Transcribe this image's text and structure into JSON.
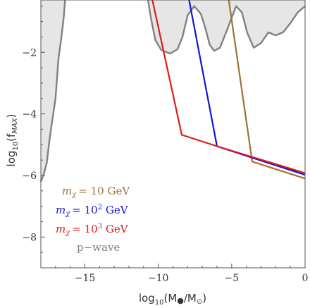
{
  "chart_data": {
    "type": "line",
    "xlabel": "log₁₀(M●/M☉)",
    "ylabel": "log₁₀(f_MAX)",
    "xlim": [
      -18,
      0
    ],
    "ylim": [
      -9,
      -0.3
    ],
    "x_ticks": [
      -15,
      -10,
      -5,
      0
    ],
    "y_ticks": [
      -2,
      -4,
      -6,
      -8
    ],
    "grid": false,
    "legend_position": "bottom-left",
    "colors": {
      "brown": "#a0703a",
      "blue": "#1515d8",
      "red": "#e01b1b",
      "gray": "#808080",
      "shade": "#e6e6e6"
    },
    "series": [
      {
        "name": "m_χ = 10 GeV",
        "color": "#a0703a",
        "points": [
          [
            -5.2,
            -0.3
          ],
          [
            -3.6,
            -5.55
          ],
          [
            0,
            -6.1
          ]
        ]
      },
      {
        "name": "m_χ = 10² GeV",
        "color": "#1515d8",
        "points": [
          [
            -7.9,
            -0.3
          ],
          [
            -6.0,
            -5.05
          ],
          [
            0,
            -5.98
          ]
        ]
      },
      {
        "name": "m_χ = 10³ GeV",
        "color": "#e01b1b",
        "points": [
          [
            -10.4,
            -0.3
          ],
          [
            -8.4,
            -4.68
          ],
          [
            -6.0,
            -5.05
          ],
          [
            0,
            -5.92
          ]
        ]
      }
    ],
    "excluded_regions": [
      {
        "name": "p−wave",
        "color": "#808080",
        "left_boundary": [
          [
            -18,
            -6.2
          ],
          [
            -17.8,
            -5.95
          ],
          [
            -17.6,
            -5.6
          ],
          [
            -17.4,
            -4.8
          ],
          [
            -17.25,
            -4.3
          ],
          [
            -17.0,
            -3.5
          ],
          [
            -16.8,
            -2.2
          ],
          [
            -16.6,
            -1.5
          ],
          [
            -16.45,
            -0.9
          ],
          [
            -16.35,
            -0.3
          ]
        ],
        "right_boundary": [
          [
            -10.7,
            -0.3
          ],
          [
            -10.5,
            -0.9
          ],
          [
            -10.2,
            -1.6
          ],
          [
            -9.8,
            -1.92
          ],
          [
            -9.2,
            -2.04
          ],
          [
            -8.7,
            -1.9
          ],
          [
            -8.35,
            -1.5
          ],
          [
            -8.0,
            -0.8
          ],
          [
            -7.55,
            -0.5
          ],
          [
            -7.1,
            -0.75
          ],
          [
            -6.8,
            -1.2
          ],
          [
            -6.5,
            -1.75
          ],
          [
            -6.2,
            -1.95
          ],
          [
            -5.8,
            -1.85
          ],
          [
            -5.3,
            -1.25
          ],
          [
            -4.7,
            -0.5
          ],
          [
            -4.3,
            -0.7
          ],
          [
            -3.95,
            -1.35
          ],
          [
            -3.5,
            -1.85
          ],
          [
            -3.0,
            -1.7
          ],
          [
            -2.5,
            -1.35
          ],
          [
            -2.0,
            -1.45
          ],
          [
            -1.5,
            -1.35
          ],
          [
            -1.0,
            -1.05
          ],
          [
            -0.5,
            -0.7
          ],
          [
            0,
            -0.5
          ]
        ]
      }
    ]
  },
  "legend": {
    "brown_label": "= 10 GeV",
    "blue_label": "= 10",
    "blue_exp": "2",
    "blue_unit": " GeV",
    "red_label": "= 10",
    "red_exp": "3",
    "red_unit": " GeV",
    "symbol": "m",
    "subscript": "χ",
    "pwave_label": "p−wave"
  },
  "axes": {
    "x_title_prefix": "log",
    "x_title_base": "10",
    "x_title_body": "(M",
    "x_title_bullet": "●",
    "x_title_slash": "/M",
    "x_title_sun": "⊙",
    "x_title_close": ")",
    "y_title_prefix": "log",
    "y_title_base": "10",
    "y_title_body": "(f",
    "y_title_sub": "MAX",
    "y_title_close": ")"
  }
}
